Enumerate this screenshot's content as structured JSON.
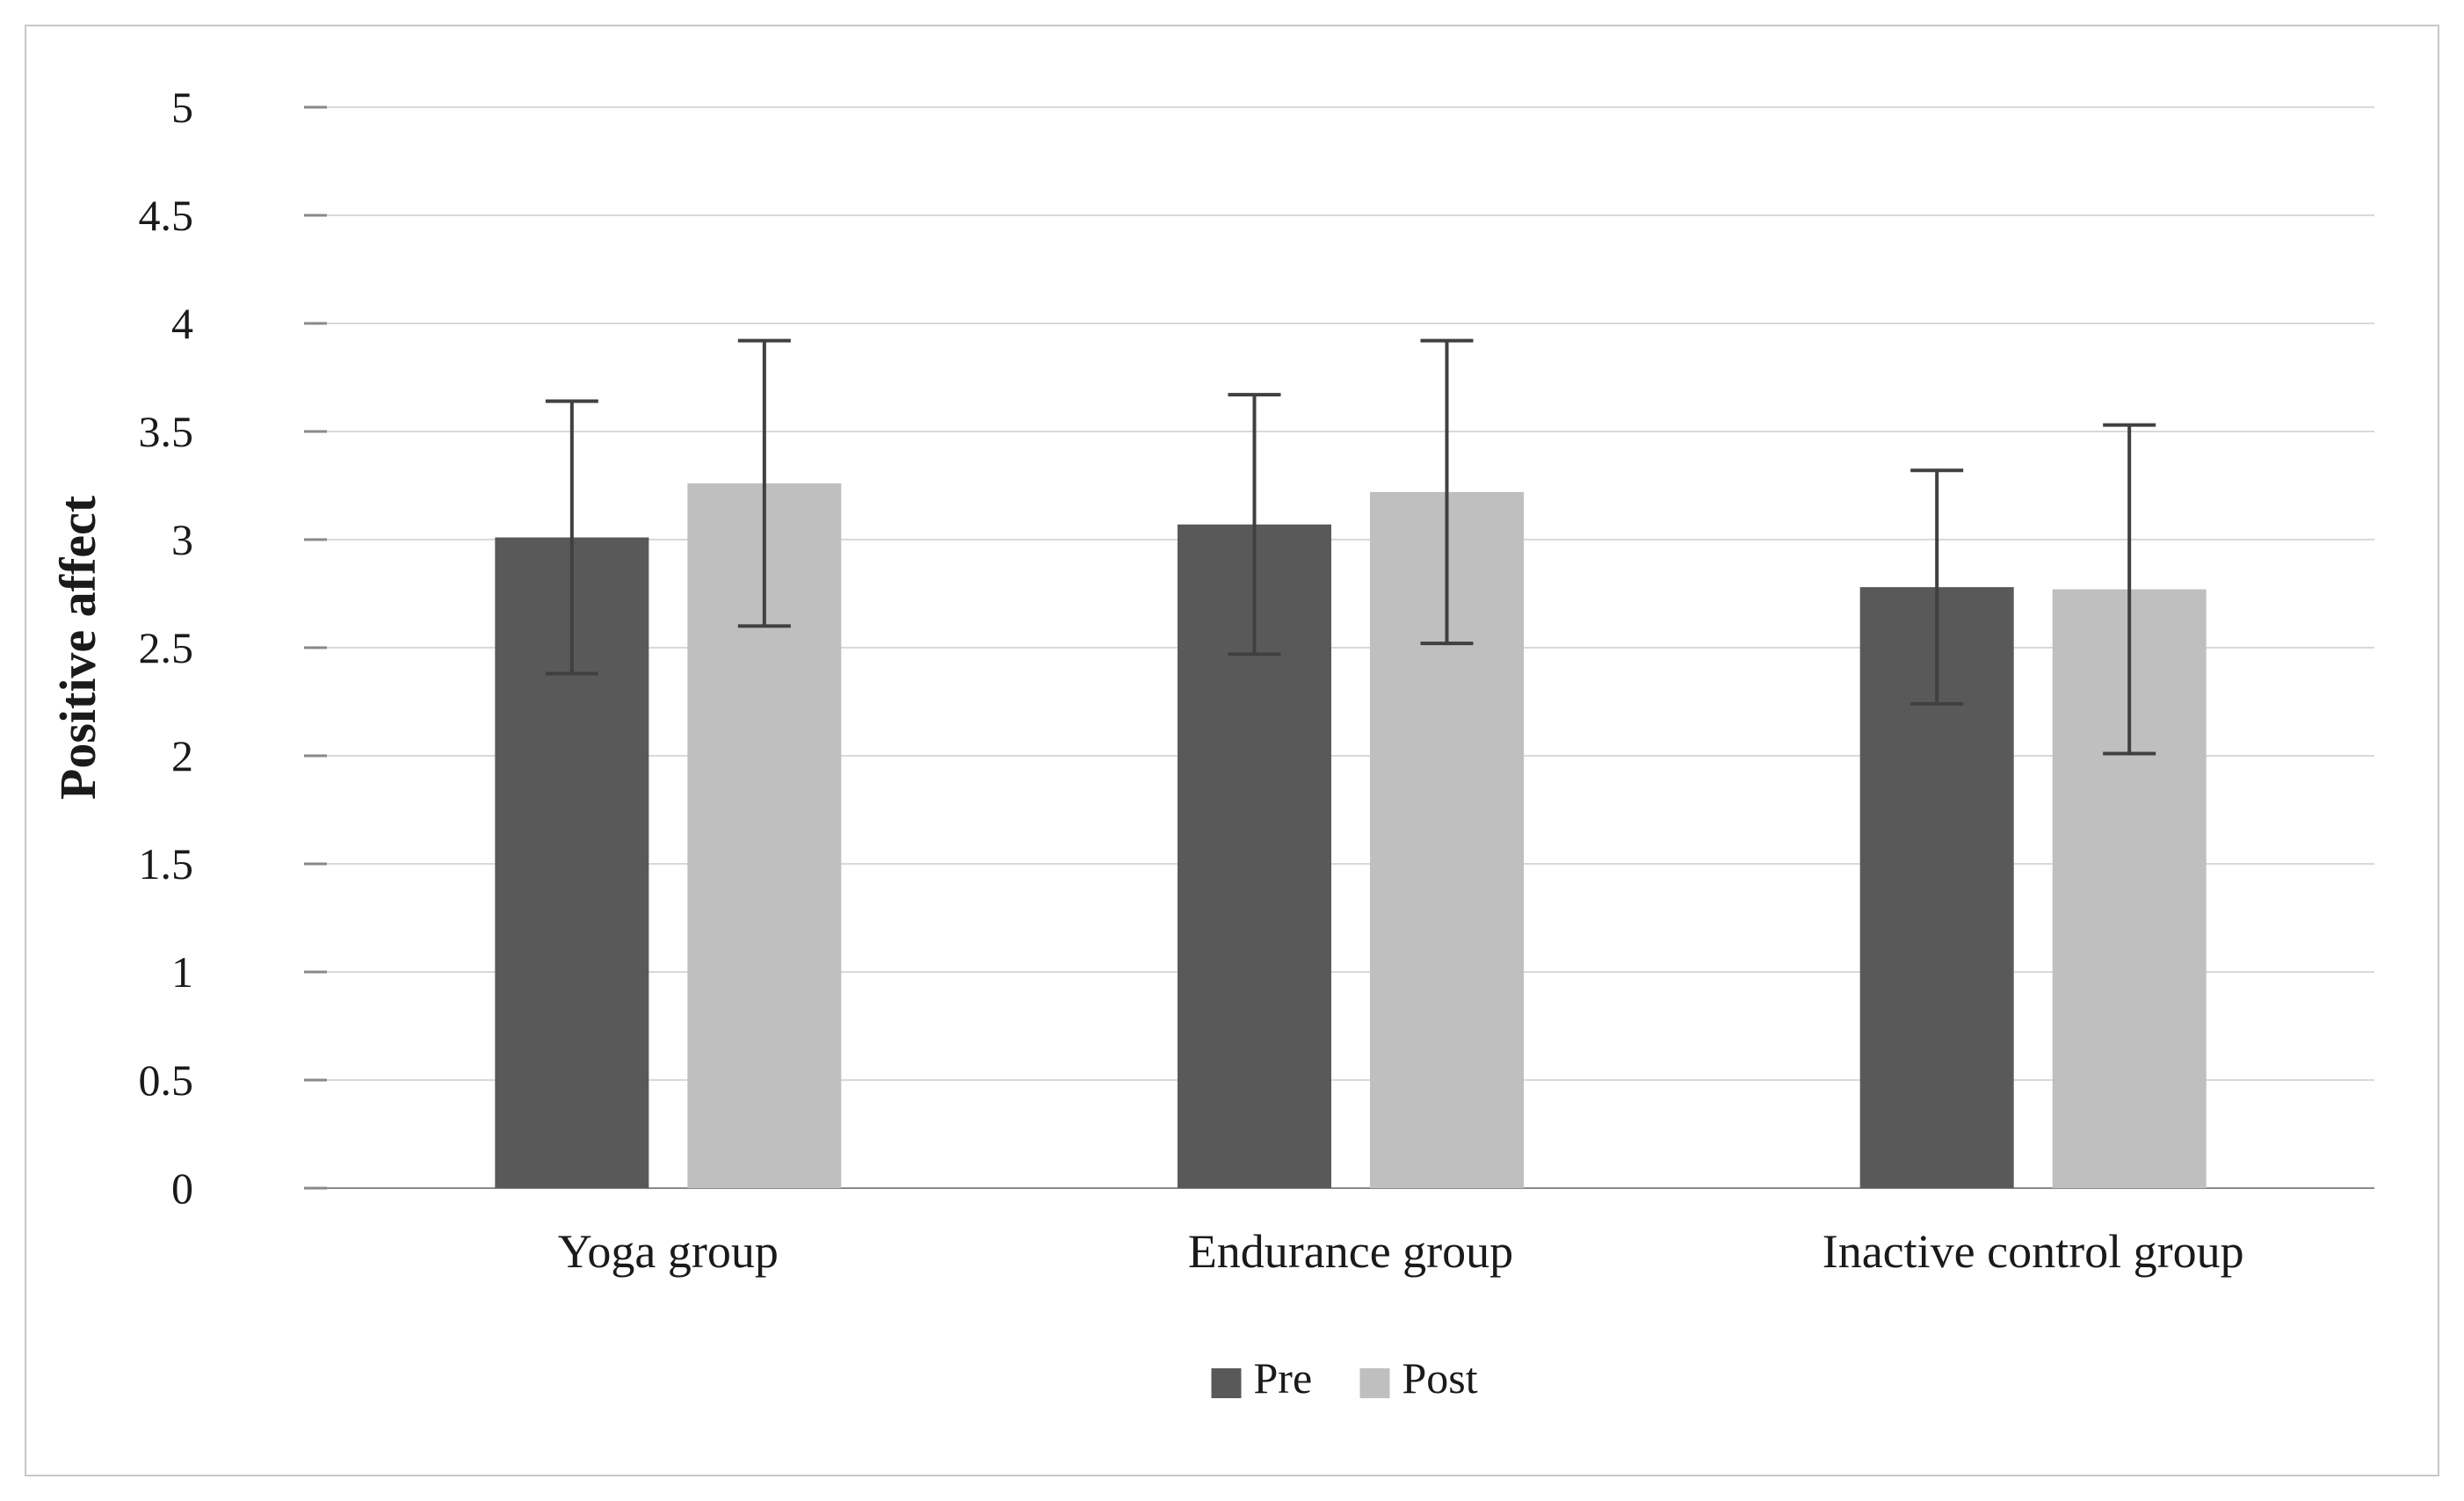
{
  "figure": {
    "border_color": "#c8c8c8",
    "background_color": "#ffffff"
  },
  "colors": {
    "text": "#1a1a1a",
    "gridline": "#d9d9d9",
    "axis": "#898989",
    "error_bar": "#404040",
    "pre_bar": "#595959",
    "post_bar": "#bfbfbf"
  },
  "chart_data": {
    "type": "bar",
    "title": "",
    "xlabel": "",
    "ylabel": "Positive affect",
    "ylim": [
      0,
      5
    ],
    "ytick_step": 0.5,
    "ytick_labels": [
      "0",
      "0.5",
      "1",
      "1.5",
      "2",
      "2.5",
      "3",
      "3.5",
      "4",
      "4.5",
      "5"
    ],
    "grid": true,
    "legend_position": "bottom",
    "categories": [
      "Yoga group",
      "Endurance group",
      "Inactive control group"
    ],
    "series": [
      {
        "name": "Pre",
        "color": "#595959",
        "values": [
          3.01,
          3.07,
          2.78
        ],
        "errors": [
          0.63,
          0.6,
          0.54
        ]
      },
      {
        "name": "Post",
        "color": "#bfbfbf",
        "values": [
          3.26,
          3.22,
          2.77
        ],
        "errors": [
          0.66,
          0.7,
          0.76
        ]
      }
    ]
  }
}
